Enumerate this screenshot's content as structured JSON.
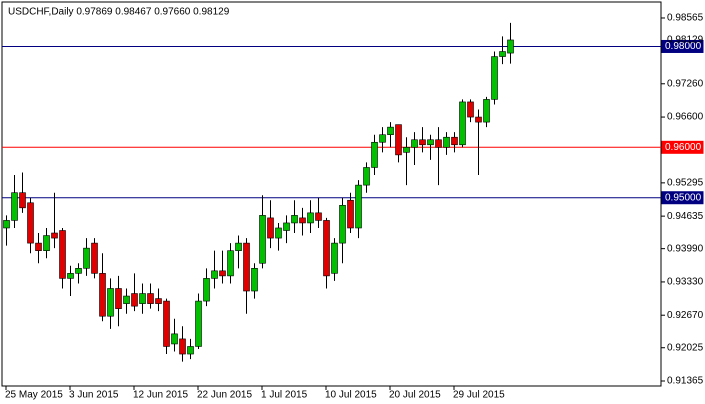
{
  "chart_data": {
    "type": "candlestick",
    "title": "USDCHF,Daily  0.97869 0.98467 0.97660 0.98129",
    "categories": [
      "25 May 2015",
      null,
      null,
      null,
      null,
      null,
      null,
      null,
      "3 Jun 2015",
      null,
      null,
      null,
      null,
      null,
      null,
      null,
      "12 Jun 2015",
      null,
      null,
      null,
      null,
      null,
      null,
      null,
      "22 Jun 2015",
      null,
      null,
      null,
      null,
      null,
      null,
      null,
      "1 Jul 2015",
      null,
      null,
      null,
      null,
      null,
      null,
      null,
      "10 Jul 2015",
      null,
      null,
      null,
      null,
      null,
      null,
      null,
      "20 Jul 2015",
      null,
      null,
      null,
      null,
      null,
      null,
      null,
      "29 Jul 2015",
      null,
      null,
      null,
      null,
      null,
      null,
      null
    ],
    "open": [
      0.944,
      0.9455,
      0.951,
      0.949,
      0.941,
      0.9395,
      0.943,
      0.9435,
      0.934,
      0.935,
      0.936,
      0.941,
      0.935,
      0.9265,
      0.932,
      0.929,
      0.931,
      0.929,
      0.931,
      0.93,
      0.9295,
      0.921,
      0.922,
      0.919,
      0.9205,
      0.9295,
      0.934,
      0.9355,
      0.9345,
      0.9395,
      0.941,
      0.9315,
      0.937,
      0.946,
      0.942,
      0.9435,
      0.945,
      0.946,
      0.945,
      0.947,
      0.9455,
      0.935,
      0.941,
      0.9495,
      0.944,
      0.9525,
      0.956,
      0.961,
      0.9625,
      0.9645,
      0.959,
      0.96,
      0.9615,
      0.9605,
      0.9615,
      0.96,
      0.962,
      0.9605,
      0.969,
      0.966,
      0.965,
      0.9695,
      0.978,
      0.97869
    ],
    "high": [
      0.9465,
      0.9545,
      0.955,
      0.95,
      0.943,
      0.944,
      0.951,
      0.944,
      0.9365,
      0.937,
      0.942,
      0.942,
      0.939,
      0.934,
      0.9345,
      0.932,
      0.935,
      0.933,
      0.933,
      0.932,
      0.93,
      0.926,
      0.9245,
      0.922,
      0.931,
      0.936,
      0.9395,
      0.9395,
      0.941,
      0.9425,
      0.942,
      0.937,
      0.9505,
      0.9495,
      0.945,
      0.9465,
      0.9495,
      0.948,
      0.9495,
      0.95,
      0.946,
      0.942,
      0.95,
      0.951,
      0.9535,
      0.957,
      0.9625,
      0.964,
      0.965,
      0.9645,
      0.962,
      0.963,
      0.964,
      0.9625,
      0.964,
      0.963,
      0.963,
      0.9695,
      0.9695,
      0.9675,
      0.97,
      0.979,
      0.982,
      0.98467
    ],
    "low": [
      0.9405,
      0.944,
      0.947,
      0.939,
      0.937,
      0.938,
      0.94,
      0.932,
      0.9305,
      0.933,
      0.9345,
      0.934,
      0.9255,
      0.924,
      0.9245,
      0.927,
      0.9275,
      0.927,
      0.928,
      0.9275,
      0.919,
      0.9195,
      0.9175,
      0.918,
      0.92,
      0.9285,
      0.932,
      0.933,
      0.933,
      0.936,
      0.927,
      0.93,
      0.936,
      0.94,
      0.9395,
      0.941,
      0.943,
      0.9425,
      0.943,
      0.944,
      0.932,
      0.9335,
      0.937,
      0.943,
      0.942,
      0.951,
      0.9545,
      0.959,
      0.96,
      0.957,
      0.9525,
      0.9565,
      0.959,
      0.9575,
      0.9525,
      0.9585,
      0.959,
      0.96,
      0.965,
      0.9545,
      0.964,
      0.9685,
      0.9765,
      0.9766
    ],
    "close": [
      0.9455,
      0.951,
      0.948,
      0.941,
      0.9395,
      0.9425,
      0.942,
      0.934,
      0.935,
      0.936,
      0.94,
      0.935,
      0.9265,
      0.932,
      0.928,
      0.9305,
      0.9285,
      0.931,
      0.929,
      0.929,
      0.9205,
      0.923,
      0.919,
      0.9205,
      0.9295,
      0.934,
      0.9355,
      0.9345,
      0.9395,
      0.941,
      0.9315,
      0.936,
      0.9465,
      0.942,
      0.944,
      0.945,
      0.9465,
      0.945,
      0.947,
      0.9455,
      0.9345,
      0.941,
      0.9485,
      0.944,
      0.9525,
      0.956,
      0.961,
      0.9625,
      0.964,
      0.9585,
      0.96,
      0.9615,
      0.9605,
      0.9615,
      0.96,
      0.962,
      0.9605,
      0.969,
      0.966,
      0.965,
      0.9695,
      0.978,
      0.979,
      0.98129
    ],
    "up_color": "#00c000",
    "down_color": "#e00000",
    "ylim": [
      0.91266,
      0.98882
    ],
    "yticks": [
      0.98565,
      {
        "value": 0.9726,
        "label": "0.97260"
      },
      {
        "value": 0.966,
        "label": "0.96600"
      },
      0.95295,
      0.94635,
      {
        "value": 0.9399,
        "label": "0.93990"
      },
      {
        "value": 0.9333,
        "label": "0.93330"
      },
      {
        "value": 0.9267,
        "label": "0.92670"
      },
      0.92025,
      0.91365
    ],
    "hlines": [
      {
        "value": 0.98,
        "label": "0.98000",
        "color": "#000080"
      },
      {
        "value": 0.96,
        "label": "0.96000",
        "color": "#ff0000"
      },
      {
        "value": 0.95,
        "label": "0.95000",
        "color": "#000080"
      }
    ]
  }
}
